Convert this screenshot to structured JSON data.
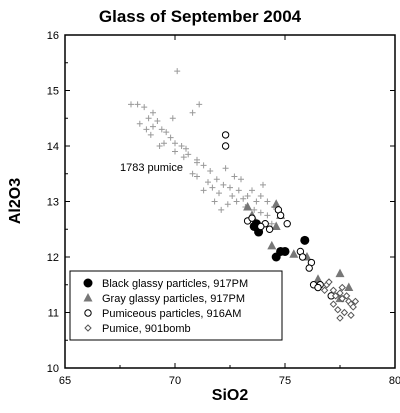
{
  "chart_data": {
    "type": "scatter",
    "title": "Glass of September 2004",
    "xlabel": "SiO2",
    "ylabel": "Al2O3",
    "xlim": [
      65,
      80
    ],
    "ylim": [
      10,
      16
    ],
    "xticks": [
      "65",
      "70",
      "75",
      "80"
    ],
    "yticks": [
      "10",
      "11",
      "12",
      "13",
      "14",
      "15",
      "16"
    ],
    "grid": false,
    "legend_position": "bottom-left",
    "annotations": [
      {
        "text": "1783 pumice",
        "x": 67.5,
        "y": 13.55
      }
    ],
    "series": [
      {
        "name": "1783 pumice",
        "marker": "plus",
        "color": "#999999",
        "points": [
          [
            68.0,
            14.75
          ],
          [
            68.3,
            14.75
          ],
          [
            68.6,
            14.7
          ],
          [
            69.0,
            14.6
          ],
          [
            69.2,
            14.45
          ],
          [
            69.0,
            14.35
          ],
          [
            68.4,
            14.4
          ],
          [
            68.7,
            14.3
          ],
          [
            68.9,
            14.2
          ],
          [
            69.4,
            14.3
          ],
          [
            69.6,
            14.25
          ],
          [
            69.8,
            14.15
          ],
          [
            69.5,
            14.05
          ],
          [
            70.0,
            14.05
          ],
          [
            70.3,
            14.0
          ],
          [
            70.5,
            13.95
          ],
          [
            70.0,
            13.9
          ],
          [
            70.6,
            13.85
          ],
          [
            71.0,
            13.75
          ],
          [
            71.3,
            13.65
          ],
          [
            71.6,
            13.55
          ],
          [
            71.0,
            13.45
          ],
          [
            71.5,
            13.35
          ],
          [
            71.9,
            13.4
          ],
          [
            72.2,
            13.3
          ],
          [
            72.5,
            13.25
          ],
          [
            72.0,
            13.15
          ],
          [
            72.6,
            13.1
          ],
          [
            72.9,
            13.2
          ],
          [
            73.1,
            13.05
          ],
          [
            73.3,
            13.1
          ],
          [
            73.5,
            13.2
          ],
          [
            73.7,
            13.0
          ],
          [
            73.9,
            13.1
          ],
          [
            74.2,
            13.0
          ],
          [
            74.5,
            12.9
          ],
          [
            72.3,
            13.6
          ],
          [
            72.7,
            13.45
          ],
          [
            71.8,
            13.0
          ],
          [
            72.1,
            12.85
          ],
          [
            71.3,
            13.2
          ],
          [
            70.8,
            13.5
          ],
          [
            69.9,
            14.5
          ],
          [
            70.8,
            14.6
          ],
          [
            71.1,
            14.75
          ],
          [
            70.1,
            15.35
          ],
          [
            71.0,
            13.7
          ],
          [
            72.8,
            13.0
          ],
          [
            73.2,
            12.9
          ],
          [
            73.6,
            12.85
          ],
          [
            73.9,
            12.8
          ],
          [
            74.2,
            12.75
          ],
          [
            74.4,
            12.6
          ],
          [
            74.0,
            13.3
          ],
          [
            73.0,
            13.4
          ],
          [
            72.4,
            12.95
          ],
          [
            69.3,
            14.0
          ],
          [
            68.8,
            14.5
          ],
          [
            70.4,
            13.8
          ],
          [
            71.7,
            13.25
          ]
        ]
      },
      {
        "name": "Black glassy particles, 917PM",
        "marker": "circle-filled",
        "color": "#000000",
        "points": [
          [
            73.6,
            12.55
          ],
          [
            73.8,
            12.45
          ],
          [
            74.6,
            12.0
          ],
          [
            74.8,
            12.1
          ],
          [
            75.0,
            12.1
          ],
          [
            75.9,
            12.3
          ],
          [
            73.7,
            12.6
          ]
        ]
      },
      {
        "name": "Gray glassy particles, 917PM",
        "marker": "triangle",
        "color": "#777777",
        "points": [
          [
            73.3,
            12.9
          ],
          [
            73.5,
            12.75
          ],
          [
            74.4,
            12.2
          ],
          [
            74.6,
            12.55
          ],
          [
            74.6,
            12.95
          ],
          [
            74.8,
            12.75
          ],
          [
            76.5,
            11.6
          ],
          [
            77.5,
            11.7
          ],
          [
            77.5,
            11.25
          ],
          [
            77.9,
            11.45
          ],
          [
            76.0,
            12.0
          ],
          [
            75.4,
            12.05
          ]
        ]
      },
      {
        "name": "Pumiceous particles, 916AM",
        "marker": "circle-open",
        "color": "#000000",
        "points": [
          [
            72.3,
            14.2
          ],
          [
            72.3,
            14.0
          ],
          [
            73.3,
            12.65
          ],
          [
            73.5,
            12.7
          ],
          [
            74.1,
            12.6
          ],
          [
            74.7,
            12.85
          ],
          [
            74.8,
            12.75
          ],
          [
            75.1,
            12.6
          ],
          [
            75.7,
            12.1
          ],
          [
            75.8,
            12.0
          ],
          [
            76.2,
            11.9
          ],
          [
            76.3,
            11.5
          ],
          [
            76.1,
            11.8
          ],
          [
            76.6,
            11.5
          ],
          [
            77.1,
            11.3
          ],
          [
            76.5,
            11.45
          ],
          [
            74.3,
            12.5
          ],
          [
            73.9,
            12.55
          ]
        ]
      },
      {
        "name": "Pumice, 901bomb",
        "marker": "diamond-open",
        "color": "#555555",
        "points": [
          [
            76.9,
            11.5
          ],
          [
            77.2,
            11.4
          ],
          [
            77.3,
            11.3
          ],
          [
            77.5,
            11.35
          ],
          [
            77.6,
            11.25
          ],
          [
            77.8,
            11.3
          ],
          [
            77.9,
            11.2
          ],
          [
            78.0,
            11.15
          ],
          [
            78.1,
            11.1
          ],
          [
            77.4,
            11.05
          ],
          [
            77.7,
            11.0
          ],
          [
            78.0,
            10.95
          ],
          [
            77.5,
            10.9
          ],
          [
            77.2,
            11.15
          ],
          [
            76.8,
            11.4
          ],
          [
            77.0,
            11.55
          ],
          [
            78.2,
            11.2
          ],
          [
            77.6,
            11.45
          ]
        ]
      }
    ]
  }
}
